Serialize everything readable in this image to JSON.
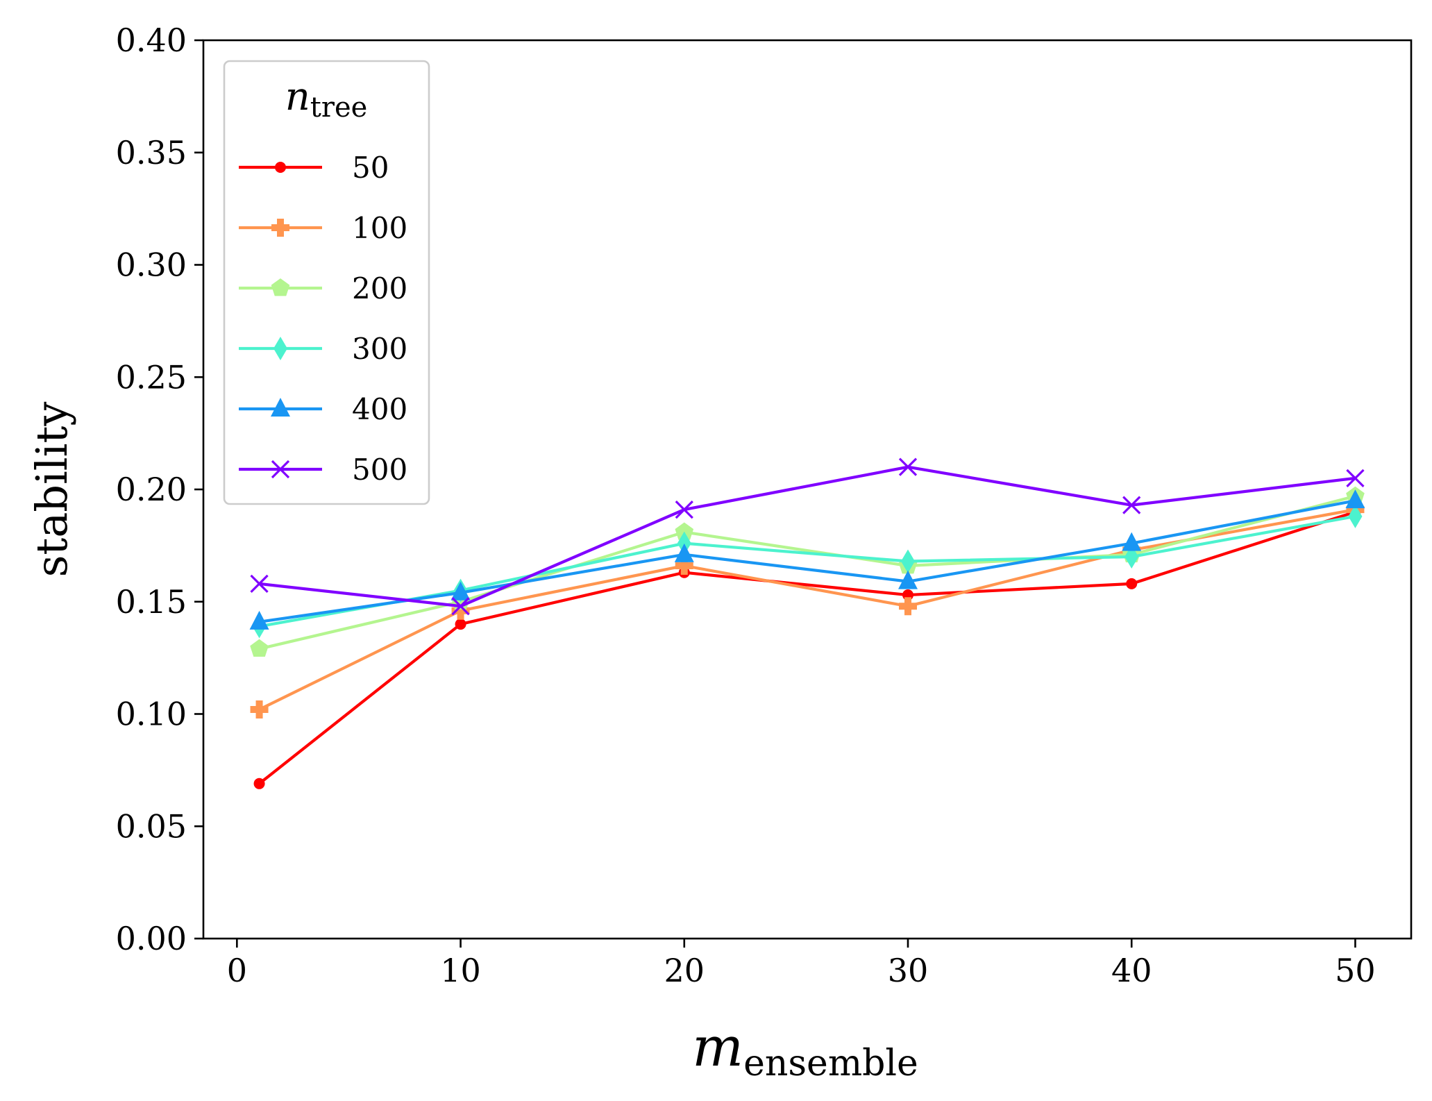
{
  "chart_data": {
    "type": "line",
    "title": "",
    "xlabel": {
      "main": "m",
      "sub": "ensemble"
    },
    "ylabel": "stability",
    "xlim": [
      -1.5,
      52.5
    ],
    "ylim": [
      0,
      0.4
    ],
    "xticks": [
      0,
      10,
      20,
      30,
      40,
      50
    ],
    "xtick_labels": [
      "0",
      "10",
      "20",
      "30",
      "40",
      "50"
    ],
    "yticks": [
      0,
      0.05,
      0.1,
      0.15,
      0.2,
      0.25,
      0.3,
      0.35,
      0.4
    ],
    "ytick_labels": [
      "0.00",
      "0.05",
      "0.10",
      "0.15",
      "0.20",
      "0.25",
      "0.30",
      "0.35",
      "0.40"
    ],
    "grid": false,
    "legend": {
      "title_main": "n",
      "title_sub": "tree",
      "position": "upper-left"
    },
    "x": [
      1,
      10,
      20,
      30,
      40,
      50
    ],
    "series": [
      {
        "name": "50",
        "color": "#ff0000",
        "marker": "circle",
        "values": [
          0.069,
          0.14,
          0.163,
          0.153,
          0.158,
          0.19
        ]
      },
      {
        "name": "100",
        "color": "#ff954f",
        "marker": "plus-filled",
        "values": [
          0.102,
          0.146,
          0.166,
          0.148,
          0.173,
          0.191
        ]
      },
      {
        "name": "200",
        "color": "#b4f58f",
        "marker": "pentagon",
        "values": [
          0.129,
          0.15,
          0.181,
          0.166,
          0.171,
          0.197
        ]
      },
      {
        "name": "300",
        "color": "#4cf2ce",
        "marker": "thin-diamond",
        "values": [
          0.139,
          0.155,
          0.176,
          0.168,
          0.17,
          0.188
        ]
      },
      {
        "name": "400",
        "color": "#1996f3",
        "marker": "triangle-up",
        "values": [
          0.141,
          0.154,
          0.171,
          0.159,
          0.176,
          0.195
        ]
      },
      {
        "name": "500",
        "color": "#8000ff",
        "marker": "x",
        "values": [
          0.158,
          0.148,
          0.191,
          0.21,
          0.193,
          0.205
        ]
      }
    ]
  }
}
